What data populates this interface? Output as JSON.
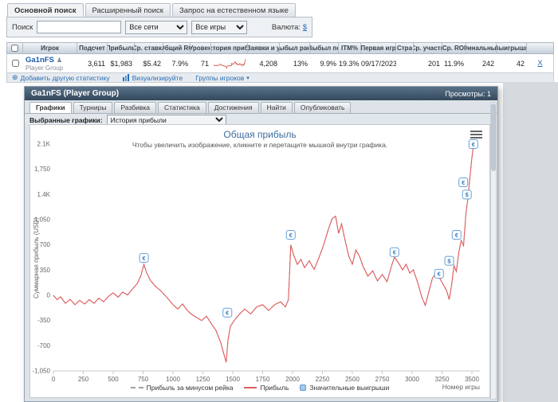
{
  "search": {
    "tabs": [
      {
        "label": "Основной поиск",
        "active": true
      },
      {
        "label": "Расширенный поиск",
        "active": false
      },
      {
        "label": "Запрос на естественном языке",
        "active": false
      }
    ],
    "search_label": "Поиск",
    "search_value": "",
    "network_select": "Все сети",
    "games_select": "Все игры",
    "currency_label": "Валюта:",
    "currency_value": "$"
  },
  "table": {
    "columns": [
      "Игрок",
      "Подсчет",
      "Прибыль",
      "Ср. ставка",
      "Общий RO",
      "Уровен",
      "История прибы",
      "Заявки и у",
      "Выбыл рано",
      "Выбыл по",
      "ITM%",
      "Первая игр",
      "Стра",
      "Ср. участн",
      "Ср. ROI",
      "Финальные",
      "Выигрыши"
    ],
    "row": {
      "player": "Ga1nFS",
      "player_type": "Player Group",
      "values": [
        "3,611",
        "$1,983",
        "$5.42",
        "7.9%",
        "71",
        "",
        "4,208",
        "13%",
        "9.9%",
        "19.3%",
        "09/17/2023",
        "",
        "201",
        "11.9%",
        "242",
        "42"
      ],
      "close_label": "X"
    },
    "footer": {
      "add_stat": "Добавить другую статистику",
      "visualize": "Визуализируйте",
      "groups": "Группы игроков"
    }
  },
  "panel": {
    "title": "Ga1nFS (Player Group)",
    "views": "Просмотры: 1",
    "tabs": [
      "Графики",
      "Турниры",
      "Разбивка",
      "Статистика",
      "Достижения",
      "Найти",
      "Опубликовать"
    ],
    "active_tab": "Графики",
    "selected_graphs_label": "Выбранные графики:",
    "selected_graph": "История прибыли"
  },
  "chart_data": {
    "type": "line",
    "title": "Общая прибыль",
    "subtitle": "Чтобы увеличить изображение, кликните и перетащите мышкой внутри графика.",
    "xlabel": "Номер игры",
    "ylabel": "Суммарная прибыль (USD)",
    "xlim": [
      0,
      3500
    ],
    "ylim": [
      -1050,
      2100
    ],
    "xticks": [
      0,
      250,
      500,
      750,
      1000,
      1250,
      1500,
      1750,
      2000,
      2250,
      2500,
      2750,
      3000,
      3250,
      3500
    ],
    "yticks": [
      2100,
      1750,
      1400,
      1050,
      700,
      350,
      0,
      -350,
      -700,
      -1050
    ],
    "ytick_labels": [
      "2.1K",
      "1,750",
      "1.4K",
      "1,050",
      "700",
      "350",
      "0",
      "-350",
      "-700",
      "-1,050"
    ],
    "grid": false,
    "legend_position": "bottom",
    "series": [
      {
        "name": "Прибыль за минусом рейка",
        "style": "dashed",
        "color": "#9aa0a6"
      },
      {
        "name": "Прибыль",
        "style": "solid",
        "color": "#e05c5c",
        "points": [
          [
            0,
            0
          ],
          [
            30,
            -60
          ],
          [
            60,
            -20
          ],
          [
            100,
            -110
          ],
          [
            140,
            -55
          ],
          [
            180,
            -130
          ],
          [
            220,
            -70
          ],
          [
            260,
            -120
          ],
          [
            300,
            -60
          ],
          [
            340,
            -110
          ],
          [
            380,
            -40
          ],
          [
            420,
            -90
          ],
          [
            460,
            -15
          ],
          [
            500,
            35
          ],
          [
            540,
            -25
          ],
          [
            580,
            45
          ],
          [
            620,
            5
          ],
          [
            660,
            85
          ],
          [
            700,
            160
          ],
          [
            730,
            265
          ],
          [
            757,
            430
          ],
          [
            775,
            330
          ],
          [
            810,
            210
          ],
          [
            850,
            130
          ],
          [
            900,
            60
          ],
          [
            950,
            -30
          ],
          [
            1000,
            -130
          ],
          [
            1040,
            -190
          ],
          [
            1080,
            -120
          ],
          [
            1120,
            -210
          ],
          [
            1160,
            -270
          ],
          [
            1200,
            -310
          ],
          [
            1240,
            -350
          ],
          [
            1280,
            -290
          ],
          [
            1320,
            -390
          ],
          [
            1360,
            -490
          ],
          [
            1400,
            -660
          ],
          [
            1425,
            -815
          ],
          [
            1445,
            -930
          ],
          [
            1460,
            -620
          ],
          [
            1480,
            -430
          ],
          [
            1520,
            -330
          ],
          [
            1560,
            -255
          ],
          [
            1600,
            -190
          ],
          [
            1650,
            -260
          ],
          [
            1700,
            -160
          ],
          [
            1750,
            -130
          ],
          [
            1800,
            -210
          ],
          [
            1850,
            -130
          ],
          [
            1900,
            -90
          ],
          [
            1940,
            -160
          ],
          [
            1965,
            -60
          ],
          [
            1985,
            700
          ],
          [
            2010,
            555
          ],
          [
            2040,
            430
          ],
          [
            2070,
            500
          ],
          [
            2100,
            385
          ],
          [
            2140,
            480
          ],
          [
            2180,
            360
          ],
          [
            2220,
            520
          ],
          [
            2260,
            700
          ],
          [
            2300,
            920
          ],
          [
            2330,
            1060
          ],
          [
            2360,
            1100
          ],
          [
            2385,
            860
          ],
          [
            2410,
            990
          ],
          [
            2440,
            760
          ],
          [
            2470,
            545
          ],
          [
            2500,
            430
          ],
          [
            2530,
            630
          ],
          [
            2560,
            540
          ],
          [
            2590,
            400
          ],
          [
            2630,
            265
          ],
          [
            2670,
            340
          ],
          [
            2710,
            200
          ],
          [
            2750,
            290
          ],
          [
            2790,
            190
          ],
          [
            2830,
            420
          ],
          [
            2852,
            530
          ],
          [
            2890,
            440
          ],
          [
            2920,
            355
          ],
          [
            2950,
            430
          ],
          [
            2980,
            310
          ],
          [
            3010,
            355
          ],
          [
            3050,
            160
          ],
          [
            3080,
            -20
          ],
          [
            3110,
            -140
          ],
          [
            3140,
            50
          ],
          [
            3170,
            240
          ],
          [
            3200,
            310
          ],
          [
            3230,
            240
          ],
          [
            3260,
            150
          ],
          [
            3290,
            60
          ],
          [
            3310,
            -60
          ],
          [
            3330,
            140
          ],
          [
            3350,
            410
          ],
          [
            3370,
            330
          ],
          [
            3390,
            590
          ],
          [
            3410,
            760
          ],
          [
            3430,
            690
          ],
          [
            3450,
            1140
          ],
          [
            3465,
            1330
          ],
          [
            3480,
            1580
          ],
          [
            3495,
            1840
          ],
          [
            3512,
            2080
          ]
        ]
      }
    ],
    "markers": {
      "name": "Значительные выигрыши",
      "color": "#5b9bd5",
      "points": [
        {
          "x": 757,
          "y": 520,
          "symbol": "€"
        },
        {
          "x": 1455,
          "y": -240,
          "symbol": "€"
        },
        {
          "x": 1985,
          "y": 840,
          "symbol": "€"
        },
        {
          "x": 2852,
          "y": 600,
          "symbol": "€"
        },
        {
          "x": 3225,
          "y": 300,
          "symbol": "€"
        },
        {
          "x": 3310,
          "y": 480,
          "symbol": "$"
        },
        {
          "x": 3372,
          "y": 840,
          "symbol": "€"
        },
        {
          "x": 3428,
          "y": 1570,
          "symbol": "€"
        },
        {
          "x": 3458,
          "y": 1400,
          "symbol": "$"
        },
        {
          "x": 3512,
          "y": 2100,
          "symbol": "€"
        }
      ]
    }
  }
}
